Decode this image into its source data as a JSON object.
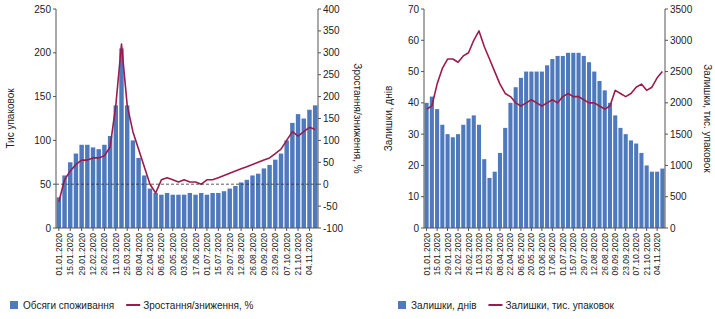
{
  "chart_data": [
    {
      "type": "bar",
      "y_label": "Тис упаковок",
      "y2_label": "Зростання/зниження, %",
      "categories": [
        "01.01.2020",
        null,
        "15.01.2020",
        null,
        "29.01.2020",
        null,
        "12.02.2020",
        null,
        "26.02.2020",
        null,
        "11.03.2020",
        null,
        "25.03.2020",
        null,
        "08.04.2020",
        null,
        "22.04.2020",
        null,
        "06.05.2020",
        null,
        "20.05.2020",
        null,
        "03.06.2020",
        null,
        "17.06.2020",
        null,
        "01.07.2020",
        null,
        "15.07.2020",
        null,
        "29.07.2020",
        null,
        "12.08.2020",
        null,
        "26.08.2020",
        null,
        "09.09.2020",
        null,
        "23.09.2020",
        null,
        "07.10.2020",
        null,
        "21.10.2020",
        null,
        "04.11.2020",
        null
      ],
      "series": [
        {
          "name": "Обсяги споживання",
          "type": "bar",
          "color": "#4f79bd",
          "values": [
            35,
            60,
            75,
            85,
            95,
            95,
            92,
            90,
            95,
            105,
            140,
            205,
            140,
            100,
            80,
            60,
            45,
            40,
            38,
            40,
            38,
            38,
            38,
            40,
            38,
            40,
            38,
            40,
            40,
            42,
            45,
            48,
            52,
            55,
            60,
            62,
            68,
            72,
            78,
            85,
            100,
            120,
            130,
            125,
            135,
            140
          ]
        },
        {
          "name": "Зростання/зниження, %",
          "type": "line",
          "axis": "y2",
          "color": "#9b1c4c",
          "values": [
            -40,
            10,
            30,
            45,
            55,
            55,
            60,
            60,
            65,
            85,
            180,
            320,
            180,
            120,
            80,
            40,
            0,
            -20,
            10,
            15,
            10,
            5,
            10,
            5,
            5,
            0,
            10,
            10,
            15,
            20,
            25,
            30,
            35,
            40,
            45,
            50,
            55,
            60,
            70,
            80,
            100,
            120,
            110,
            120,
            130,
            125
          ]
        }
      ],
      "ylim": [
        0,
        250
      ],
      "yticks": [
        0,
        50,
        100,
        150,
        200,
        250
      ],
      "y2lim": [
        -100,
        400
      ],
      "y2ticks": [
        -100,
        -50,
        0,
        50,
        100,
        150,
        200,
        250,
        300,
        350,
        400
      ],
      "grid": false,
      "legend": "bottom"
    },
    {
      "type": "bar",
      "y_label": "Залишки, днів",
      "y2_label": "Залишки, тис. упаковок",
      "categories": [
        "01.01.2020",
        null,
        "15.01.2020",
        null,
        "29.01.2020",
        null,
        "12.02.2020",
        null,
        "26.02.2020",
        null,
        "11.03.2020",
        null,
        "25.03.2020",
        null,
        "08.04.2020",
        null,
        "22.04.2020",
        null,
        "06.05.2020",
        null,
        "20.05.2020",
        null,
        "03.06.2020",
        null,
        "17.06.2020",
        null,
        "01.07.2020",
        null,
        "15.07.2020",
        null,
        "29.07.2020",
        null,
        "12.08.2020",
        null,
        "26.08.2020",
        null,
        "09.09.2020",
        null,
        "23.09.2020",
        null,
        "07.10.2020",
        null,
        "21.10.2020",
        null,
        "04.11.2020",
        null
      ],
      "series": [
        {
          "name": "Залишки, днів",
          "type": "bar",
          "color": "#4f79bd",
          "values": [
            40,
            42,
            38,
            33,
            30,
            29,
            30,
            33,
            35,
            36,
            33,
            22,
            16,
            18,
            24,
            32,
            40,
            45,
            48,
            50,
            50,
            50,
            50,
            52,
            54,
            55,
            55,
            56,
            56,
            56,
            55,
            53,
            50,
            47,
            44,
            40,
            36,
            32,
            30,
            28,
            27,
            24,
            20,
            18,
            18,
            19
          ]
        },
        {
          "name": "Залишки, тис. упаковок",
          "type": "line",
          "axis": "y2",
          "color": "#9b1c4c",
          "values": [
            1900,
            1950,
            2300,
            2550,
            2700,
            2700,
            2650,
            2750,
            2800,
            3000,
            3150,
            2900,
            2700,
            2500,
            2300,
            2150,
            2100,
            2000,
            1950,
            2000,
            2050,
            2000,
            1950,
            2000,
            2050,
            2000,
            2100,
            2150,
            2100,
            2100,
            2050,
            2000,
            2000,
            1950,
            1900,
            1950,
            2200,
            2150,
            2100,
            2150,
            2250,
            2300,
            2200,
            2250,
            2400,
            2500
          ]
        }
      ],
      "ylim": [
        0,
        70
      ],
      "yticks": [
        0,
        10,
        20,
        30,
        40,
        50,
        60,
        70
      ],
      "y2lim": [
        0,
        3500
      ],
      "y2ticks": [
        0,
        500,
        1000,
        1500,
        2000,
        2500,
        3000,
        3500
      ],
      "grid": false,
      "legend": "bottom"
    }
  ]
}
